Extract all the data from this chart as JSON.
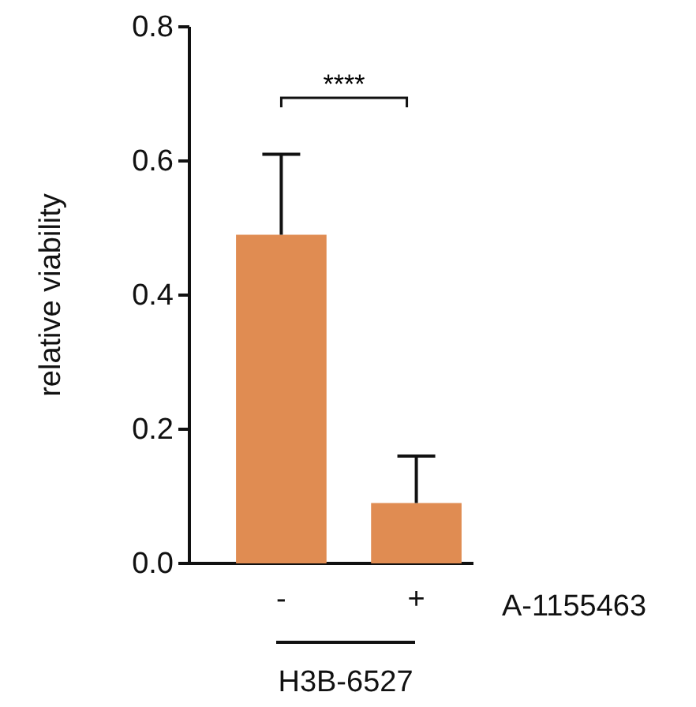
{
  "chart_data": {
    "type": "bar",
    "ylabel": "relative viability",
    "categories": [
      "-",
      "+"
    ],
    "values": [
      0.49,
      0.09
    ],
    "color": "#e08c52",
    "errors": [
      [
        0.49,
        0.61
      ],
      [
        0.09,
        0.16
      ]
    ],
    "ylim": [
      0,
      0.8
    ],
    "yticks": [
      {
        "value": 0,
        "label": "0.0"
      },
      0.2,
      0.4,
      0.6,
      0.8
    ],
    "grid": false,
    "annotations": [
      "****",
      "A-1155463",
      "H3B-6527"
    ]
  }
}
